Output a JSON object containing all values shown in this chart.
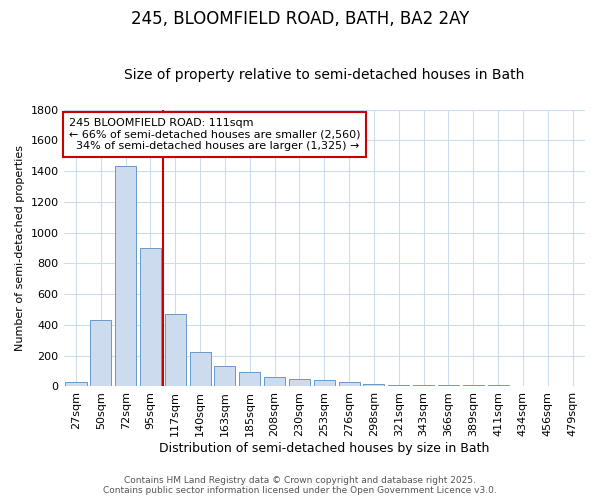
{
  "title": "245, BLOOMFIELD ROAD, BATH, BA2 2AY",
  "subtitle": "Size of property relative to semi-detached houses in Bath",
  "xlabel": "Distribution of semi-detached houses by size in Bath",
  "ylabel": "Number of semi-detached properties",
  "categories": [
    "27sqm",
    "50sqm",
    "72sqm",
    "95sqm",
    "117sqm",
    "140sqm",
    "163sqm",
    "185sqm",
    "208sqm",
    "230sqm",
    "253sqm",
    "276sqm",
    "298sqm",
    "321sqm",
    "343sqm",
    "366sqm",
    "389sqm",
    "411sqm",
    "434sqm",
    "456sqm",
    "479sqm"
  ],
  "values": [
    28,
    430,
    1430,
    900,
    470,
    225,
    135,
    95,
    60,
    48,
    40,
    30,
    18,
    12,
    10,
    8,
    8,
    7,
    4,
    2,
    2
  ],
  "bar_color": "#ccdcee",
  "bar_edgecolor": "#6699cc",
  "background_color": "#ffffff",
  "plot_bg_color": "#ffffff",
  "grid_color": "#ccdded",
  "property_line_color": "#cc0000",
  "property_line_x": 3.5,
  "annotation_line1": "245 BLOOMFIELD ROAD: 111sqm",
  "annotation_line2": "← 66% of semi-detached houses are smaller (2,560)",
  "annotation_line3": "  34% of semi-detached houses are larger (1,325) →",
  "annotation_box_color": "#ffffff",
  "annotation_box_edgecolor": "#cc0000",
  "footer_text": "Contains HM Land Registry data © Crown copyright and database right 2025.\nContains public sector information licensed under the Open Government Licence v3.0.",
  "ylim": [
    0,
    1800
  ],
  "yticks": [
    0,
    200,
    400,
    600,
    800,
    1000,
    1200,
    1400,
    1600,
    1800
  ],
  "title_fontsize": 12,
  "subtitle_fontsize": 10,
  "xlabel_fontsize": 9,
  "ylabel_fontsize": 8,
  "tick_fontsize": 8,
  "annotation_fontsize": 8,
  "footer_fontsize": 6.5
}
